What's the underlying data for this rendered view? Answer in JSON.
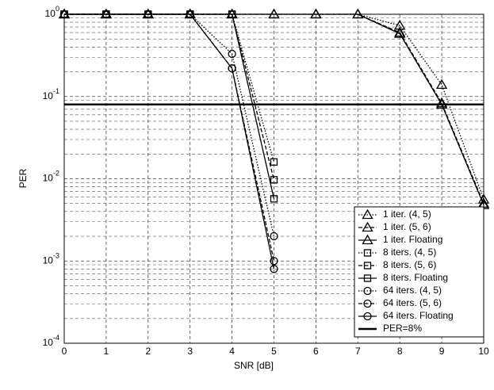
{
  "chart_data": {
    "type": "line",
    "xlabel": "SNR [dB]",
    "ylabel": "PER",
    "x": [
      0,
      1,
      2,
      3,
      4,
      5,
      6,
      7,
      8,
      9,
      10
    ],
    "xlim": [
      0,
      10
    ],
    "xticks": [
      0,
      1,
      2,
      3,
      4,
      5,
      6,
      7,
      8,
      9,
      10
    ],
    "ylim": [
      0.0001,
      1
    ],
    "log_y": true,
    "grid": true,
    "minor_grid": true,
    "yticks": [
      {
        "value": 0.0001,
        "label": "10^-4"
      },
      {
        "value": 0.001,
        "label": "10^-3"
      },
      {
        "value": 0.01,
        "label": "10^-2"
      },
      {
        "value": 0.1,
        "label": "10^-1"
      },
      {
        "value": 1,
        "label": "10^0"
      }
    ],
    "legend": "lower right",
    "series": [
      {
        "name": "1 iter. (4, 5)",
        "color": "#000000",
        "marker": "triangle",
        "dash": "dotted",
        "values": [
          1,
          1,
          1,
          1,
          1,
          1,
          1,
          1,
          0.73,
          0.139,
          0.0056
        ]
      },
      {
        "name": "1 iter. (5, 6)",
        "color": "#000000",
        "marker": "triangle",
        "dash": "dashed",
        "values": [
          1,
          1,
          1,
          1,
          1,
          1,
          1,
          1,
          0.6,
          0.083,
          0.005
        ]
      },
      {
        "name": "1 iter. Floating",
        "color": "#000000",
        "marker": "triangle",
        "dash": "solid",
        "values": [
          1,
          1,
          1,
          1,
          1,
          1,
          1,
          1,
          0.58,
          0.08,
          0.0048
        ]
      },
      {
        "name": "8 iters. (4, 5)",
        "color": "#000000",
        "marker": "square",
        "dash": "dotted",
        "values": [
          1,
          1,
          1,
          1,
          1,
          0.016,
          null,
          null,
          null,
          null,
          null
        ]
      },
      {
        "name": "8 iters. (5, 6)",
        "color": "#000000",
        "marker": "square",
        "dash": "dashed",
        "values": [
          1,
          1,
          1,
          1,
          1,
          0.0097,
          null,
          null,
          null,
          null,
          null
        ]
      },
      {
        "name": "8 iters. Floating",
        "color": "#000000",
        "marker": "square",
        "dash": "solid",
        "values": [
          1,
          1,
          1,
          1,
          1,
          0.0057,
          null,
          null,
          null,
          null,
          null
        ]
      },
      {
        "name": "64 iters. (4, 5)",
        "color": "#000000",
        "marker": "circle",
        "dash": "dotted",
        "values": [
          1,
          1,
          1,
          1,
          0.33,
          0.002,
          null,
          null,
          null,
          null,
          null
        ]
      },
      {
        "name": "64 iters. (5, 6)",
        "color": "#000000",
        "marker": "circle",
        "dash": "dashed",
        "values": [
          1,
          1,
          1,
          1,
          0.22,
          0.001,
          null,
          null,
          null,
          null,
          null
        ]
      },
      {
        "name": "64 iters. Floating",
        "color": "#000000",
        "marker": "circle",
        "dash": "solid",
        "values": [
          1,
          1,
          1,
          1,
          0.22,
          0.0008,
          null,
          null,
          null,
          null,
          null
        ]
      },
      {
        "name": "PER=8%",
        "color": "#000000",
        "marker": "none",
        "dash": "solid",
        "width": 2.5,
        "values": [
          0.08,
          0.08,
          0.08,
          0.08,
          0.08,
          0.08,
          0.08,
          0.08,
          0.08,
          0.08,
          0.08
        ]
      }
    ]
  }
}
